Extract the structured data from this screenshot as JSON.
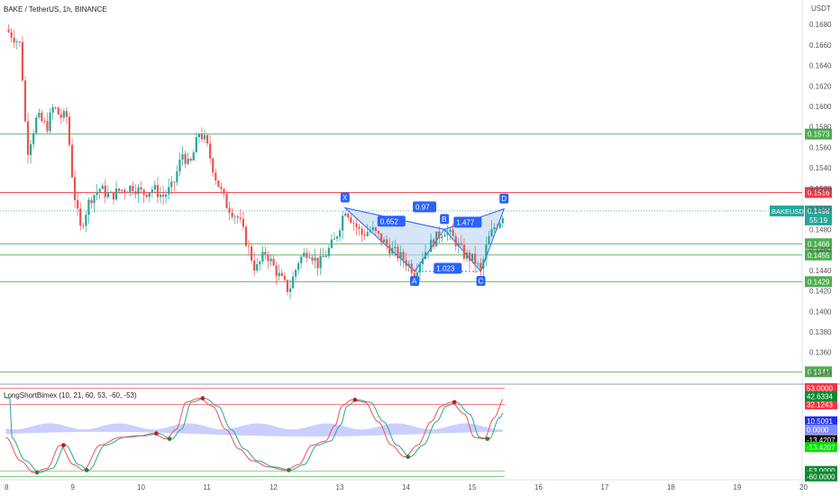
{
  "header": {
    "title": "BAKE / TetherUS, 1h, BINANCE",
    "currency": "USDT"
  },
  "colors": {
    "up": "#26a69a",
    "down": "#ef5350",
    "support": "#4caf50",
    "resistance": "#f23645",
    "pattern_fill": "#bcd4f5",
    "pattern_stroke": "#2962ff",
    "label_bg": "#2962ff",
    "osc_fast": "#ef5350",
    "osc_slow": "#26a69a",
    "osc_area": "#9fa8ff"
  },
  "chart_data": [
    {
      "type": "candlestick",
      "symbol": "BAKEUSDT",
      "title": "BAKE / TetherUS, 1h, BINANCE",
      "x_ticks": [
        "8",
        "9",
        "10",
        "11",
        "12",
        "13",
        "14",
        "15",
        "16",
        "17",
        "18",
        "19",
        "20"
      ],
      "y_ticks": [
        0.168,
        0.166,
        0.164,
        0.162,
        0.16,
        0.158,
        0.156,
        0.154,
        0.152,
        0.15,
        0.148,
        0.146,
        0.144,
        0.142,
        0.14,
        0.138,
        0.136,
        0.134
      ],
      "ylim": [
        0.1336,
        0.1688
      ],
      "last_price": 0.1498,
      "countdown": "55:19",
      "levels": [
        {
          "price": 0.1573,
          "label": "0.1573",
          "kind": "support"
        },
        {
          "price": 0.1516,
          "label": "0.1516",
          "kind": "resistance"
        },
        {
          "price": 0.1466,
          "label": "0.1466",
          "kind": "support"
        },
        {
          "price": 0.1455,
          "label": "0.1455",
          "kind": "support"
        },
        {
          "price": 0.1429,
          "label": "0.1429",
          "kind": "support"
        },
        {
          "price": 0.1341,
          "label": "0.1341",
          "kind": "support"
        }
      ],
      "pattern": {
        "points": [
          {
            "name": "X",
            "day": 13.1,
            "price": 0.1501
          },
          {
            "name": "A",
            "day": 14.15,
            "price": 0.1439
          },
          {
            "name": "B",
            "day": 14.6,
            "price": 0.148
          },
          {
            "name": "C",
            "day": 15.15,
            "price": 0.1439
          },
          {
            "name": "D",
            "day": 15.5,
            "price": 0.15
          }
        ],
        "ratios": [
          {
            "text": "0.652",
            "day": 13.8,
            "price": 0.1488
          },
          {
            "text": "0.97",
            "day": 14.3,
            "price": 0.1502
          },
          {
            "text": "1.477",
            "day": 14.95,
            "price": 0.1487
          },
          {
            "text": "1.023",
            "day": 14.65,
            "price": 0.1442
          }
        ]
      },
      "price_path": [
        [
          7.98,
          0.1675
        ],
        [
          8.1,
          0.1668
        ],
        [
          8.2,
          0.166
        ],
        [
          8.3,
          0.1555
        ],
        [
          8.45,
          0.159
        ],
        [
          8.6,
          0.158
        ],
        [
          8.7,
          0.16
        ],
        [
          8.8,
          0.159
        ],
        [
          8.9,
          0.159
        ],
        [
          9.0,
          0.152
        ],
        [
          9.1,
          0.148
        ],
        [
          9.25,
          0.151
        ],
        [
          9.4,
          0.152
        ],
        [
          9.55,
          0.1512
        ],
        [
          9.7,
          0.1518
        ],
        [
          9.9,
          0.1522
        ],
        [
          10.05,
          0.1515
        ],
        [
          10.2,
          0.152
        ],
        [
          10.35,
          0.1512
        ],
        [
          10.5,
          0.1522
        ],
        [
          10.65,
          0.1555
        ],
        [
          10.75,
          0.154
        ],
        [
          10.9,
          0.1575
        ],
        [
          11.0,
          0.1565
        ],
        [
          11.15,
          0.153
        ],
        [
          11.3,
          0.1505
        ],
        [
          11.5,
          0.149
        ],
        [
          11.6,
          0.147
        ],
        [
          11.75,
          0.144
        ],
        [
          11.9,
          0.1458
        ],
        [
          12.05,
          0.144
        ],
        [
          12.25,
          0.142
        ],
        [
          12.4,
          0.145
        ],
        [
          12.55,
          0.146
        ],
        [
          12.7,
          0.1445
        ],
        [
          12.85,
          0.146
        ],
        [
          12.95,
          0.147
        ],
        [
          13.05,
          0.149
        ],
        [
          13.1,
          0.1501
        ],
        [
          13.2,
          0.149
        ],
        [
          13.35,
          0.1475
        ],
        [
          13.5,
          0.148
        ],
        [
          13.65,
          0.147
        ],
        [
          13.8,
          0.146
        ],
        [
          14.0,
          0.145
        ],
        [
          14.15,
          0.1439
        ],
        [
          14.3,
          0.1458
        ],
        [
          14.45,
          0.147
        ],
        [
          14.6,
          0.148
        ],
        [
          14.75,
          0.147
        ],
        [
          14.9,
          0.1455
        ],
        [
          15.05,
          0.145
        ],
        [
          15.15,
          0.1439
        ],
        [
          15.25,
          0.1468
        ],
        [
          15.35,
          0.1482
        ],
        [
          15.45,
          0.149
        ],
        [
          15.5,
          0.1498
        ]
      ]
    },
    {
      "type": "line",
      "title": "LongShortBimex (10, 21, 60, 53, -60, -53)",
      "ylim": [
        -62,
        58
      ],
      "levels": [
        {
          "value": 53.0,
          "label": "53.0000",
          "bg": "#f23645"
        },
        {
          "value": 32.1243,
          "label": "32.1243",
          "bg": "#f23645"
        },
        {
          "value": -53.0,
          "label": "-53.0000",
          "bg": "#0b8a2f"
        },
        {
          "value": -60.0,
          "label": "-60.0000",
          "bg": "#0b8a2f"
        }
      ],
      "value_tags": [
        {
          "label": "42.6334",
          "value": 42.6,
          "bg": "#0b8a2f"
        },
        {
          "label": "10.5091",
          "value": 10.5,
          "bg": "#1f2eea"
        },
        {
          "label": "0.0000",
          "value": 0.0,
          "bg": "#7e8cff"
        },
        {
          "label": "-13.4207",
          "value": -13.4,
          "bg": "#111111"
        },
        {
          "label": "-13.4207",
          "value": -22.5,
          "bg": "#00e000"
        }
      ],
      "wave_path": [
        [
          7.98,
          -10
        ],
        [
          8.2,
          -40
        ],
        [
          8.4,
          -55
        ],
        [
          8.6,
          -50
        ],
        [
          8.8,
          -20
        ],
        [
          9.0,
          -45
        ],
        [
          9.15,
          -52
        ],
        [
          9.4,
          -20
        ],
        [
          9.7,
          -10
        ],
        [
          10.0,
          -8
        ],
        [
          10.2,
          -5
        ],
        [
          10.4,
          -12
        ],
        [
          10.55,
          0
        ],
        [
          10.7,
          35
        ],
        [
          10.9,
          40
        ],
        [
          11.1,
          30
        ],
        [
          11.3,
          0
        ],
        [
          11.5,
          -25
        ],
        [
          11.7,
          -40
        ],
        [
          11.95,
          -48
        ],
        [
          12.2,
          -52
        ],
        [
          12.4,
          -45
        ],
        [
          12.6,
          -20
        ],
        [
          12.8,
          -15
        ],
        [
          12.95,
          5
        ],
        [
          13.05,
          30
        ],
        [
          13.2,
          38
        ],
        [
          13.4,
          35
        ],
        [
          13.6,
          10
        ],
        [
          13.8,
          -20
        ],
        [
          14.0,
          -35
        ],
        [
          14.2,
          -20
        ],
        [
          14.4,
          10
        ],
        [
          14.55,
          30
        ],
        [
          14.7,
          35
        ],
        [
          14.9,
          20
        ],
        [
          15.05,
          -10
        ],
        [
          15.2,
          -12
        ],
        [
          15.35,
          15
        ],
        [
          15.5,
          40
        ]
      ]
    }
  ]
}
